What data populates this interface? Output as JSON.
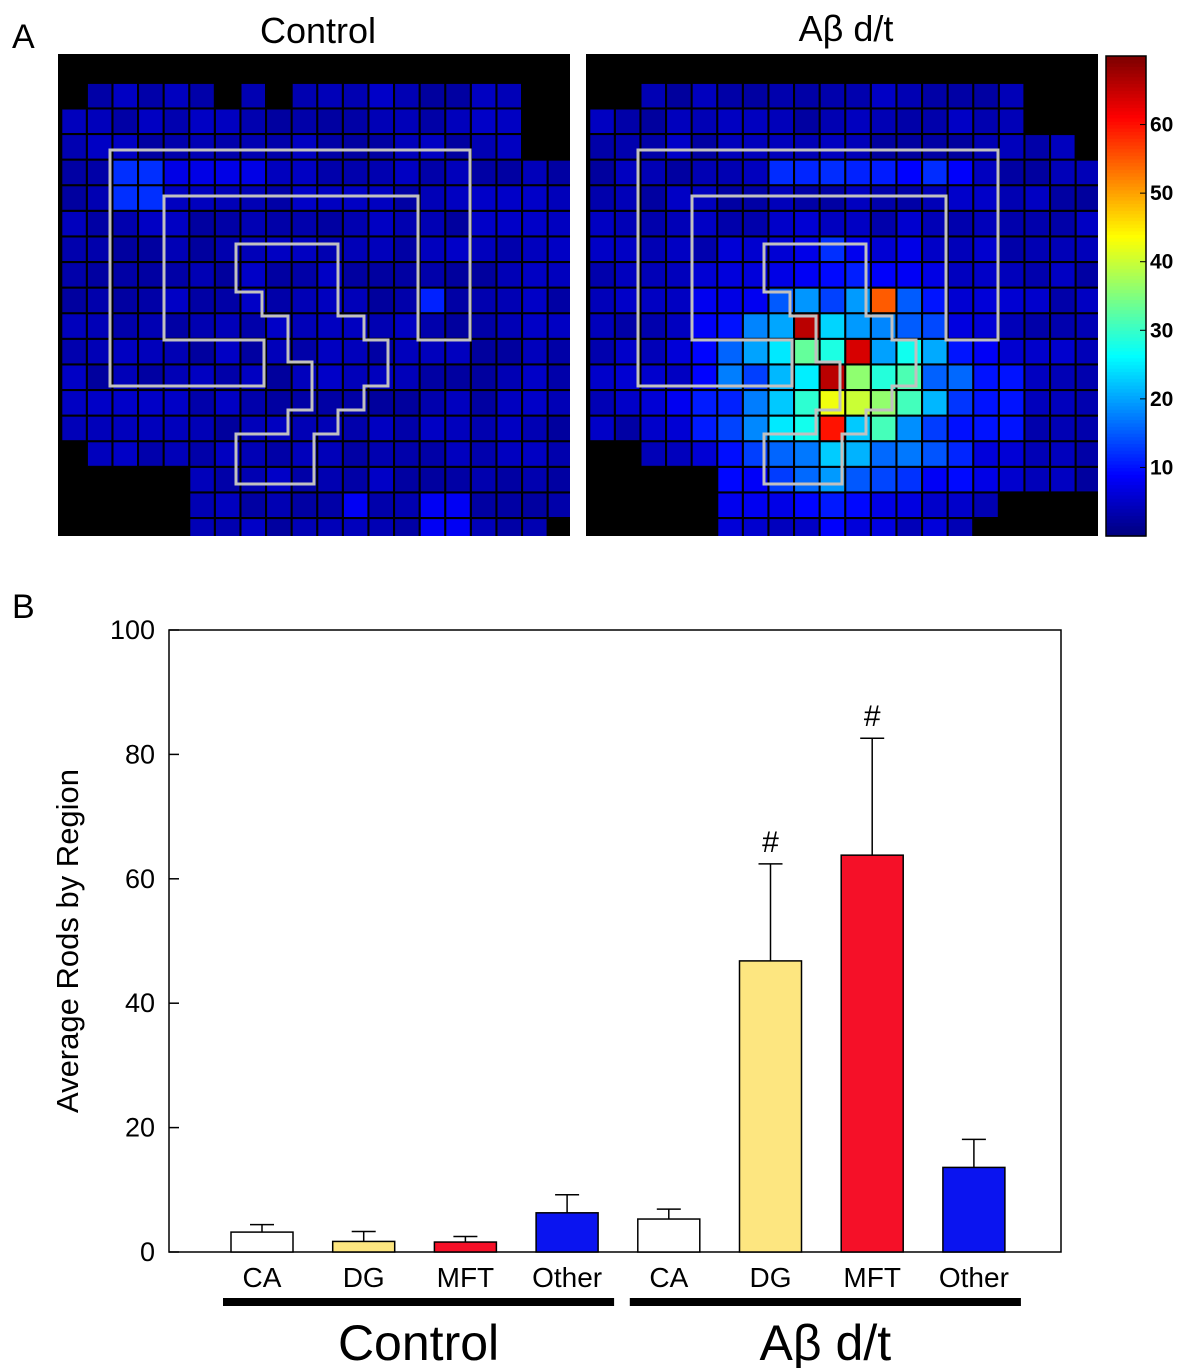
{
  "panel_a": {
    "letter": "A",
    "maps": [
      {
        "title": "Control",
        "type": "heatmap"
      },
      {
        "title": "Aβ d/t",
        "type": "heatmap"
      }
    ],
    "colorbar": {
      "ticks": [
        "10",
        "20",
        "30",
        "40",
        "50",
        "60"
      ],
      "tick_values": [
        10,
        20,
        30,
        40,
        50,
        60
      ],
      "range": [
        0,
        70
      ],
      "colormap": "jet"
    },
    "colors": {
      "background": "#000000",
      "outline": "#c0c0c0",
      "cell_border": "#000000"
    }
  },
  "panel_b": {
    "letter": "B",
    "chart_data": {
      "type": "bar",
      "ylabel": "Average Rods by Region",
      "ylim": [
        0,
        100
      ],
      "yticks": [
        0,
        20,
        40,
        60,
        80,
        100
      ],
      "groups": [
        {
          "label": "Control",
          "bars": [
            {
              "category": "CA",
              "value": 3.2,
              "error": 1.2,
              "color": "#ffffff",
              "annotation": ""
            },
            {
              "category": "DG",
              "value": 1.7,
              "error": 1.6,
              "color": "#fde680",
              "annotation": ""
            },
            {
              "category": "MFT",
              "value": 1.6,
              "error": 0.9,
              "color": "#f51028",
              "annotation": ""
            },
            {
              "category": "Other",
              "value": 6.3,
              "error": 2.9,
              "color": "#0a14f0",
              "annotation": ""
            }
          ]
        },
        {
          "label": "Aβ d/t",
          "bars": [
            {
              "category": "CA",
              "value": 5.3,
              "error": 1.6,
              "color": "#ffffff",
              "annotation": ""
            },
            {
              "category": "DG",
              "value": 46.8,
              "error": 15.6,
              "color": "#fde680",
              "annotation": "#"
            },
            {
              "category": "MFT",
              "value": 63.8,
              "error": 18.8,
              "color": "#f51028",
              "annotation": "#"
            },
            {
              "category": "Other",
              "value": 13.6,
              "error": 4.5,
              "color": "#0a14f0",
              "annotation": ""
            }
          ]
        }
      ]
    }
  }
}
